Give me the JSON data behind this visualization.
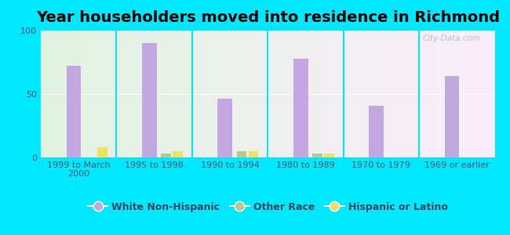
{
  "title": "Year householders moved into residence in Richmond",
  "categories": [
    "1999 to March\n2000",
    "1995 to 1998",
    "1990 to 1994",
    "1980 to 1989",
    "1970 to 1979",
    "1969 or earlier"
  ],
  "white_non_hispanic": [
    72,
    90,
    46,
    78,
    41,
    64
  ],
  "other_race": [
    0,
    3,
    5,
    3,
    0,
    0
  ],
  "hispanic_or_latino": [
    8,
    5,
    5,
    3,
    0,
    0
  ],
  "white_color": "#c4a8e2",
  "other_color": "#b8c98a",
  "hispanic_color": "#f0e060",
  "bg_outer": "#00e8ff",
  "ylim": [
    0,
    100
  ],
  "yticks": [
    0,
    50,
    100
  ],
  "watermark": "City-Data.com",
  "bar_width": 0.13,
  "title_fontsize": 14,
  "axis_fontsize": 8,
  "legend_fontsize": 9
}
